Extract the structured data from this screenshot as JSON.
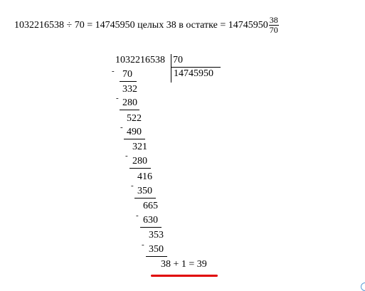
{
  "equation": {
    "dividend": "1032216538",
    "op": "÷",
    "divisor": "70",
    "eq": "=",
    "quotient": "14745950",
    "whole_word": "целых",
    "remainder": "38",
    "remainder_text": "в остатке",
    "eq2": "=",
    "mixed_whole": "14745950",
    "frac_num": "38",
    "frac_den": "70"
  },
  "long_division": {
    "dividend": "1032216538",
    "divisor": "70",
    "quotient": "14745950",
    "steps": [
      {
        "sub": "70",
        "rem": "332"
      },
      {
        "sub": "280",
        "rem": "522"
      },
      {
        "sub": "490",
        "rem": "321"
      },
      {
        "sub": "280",
        "rem": "416"
      },
      {
        "sub": "350",
        "rem": "665"
      },
      {
        "sub": "630",
        "rem": "353"
      },
      {
        "sub": "350",
        "rem": ""
      }
    ],
    "final_note": "38 + 1 = 39"
  },
  "colors": {
    "red_underline": "#e00000",
    "corner_circle": "#5b9bd5"
  }
}
